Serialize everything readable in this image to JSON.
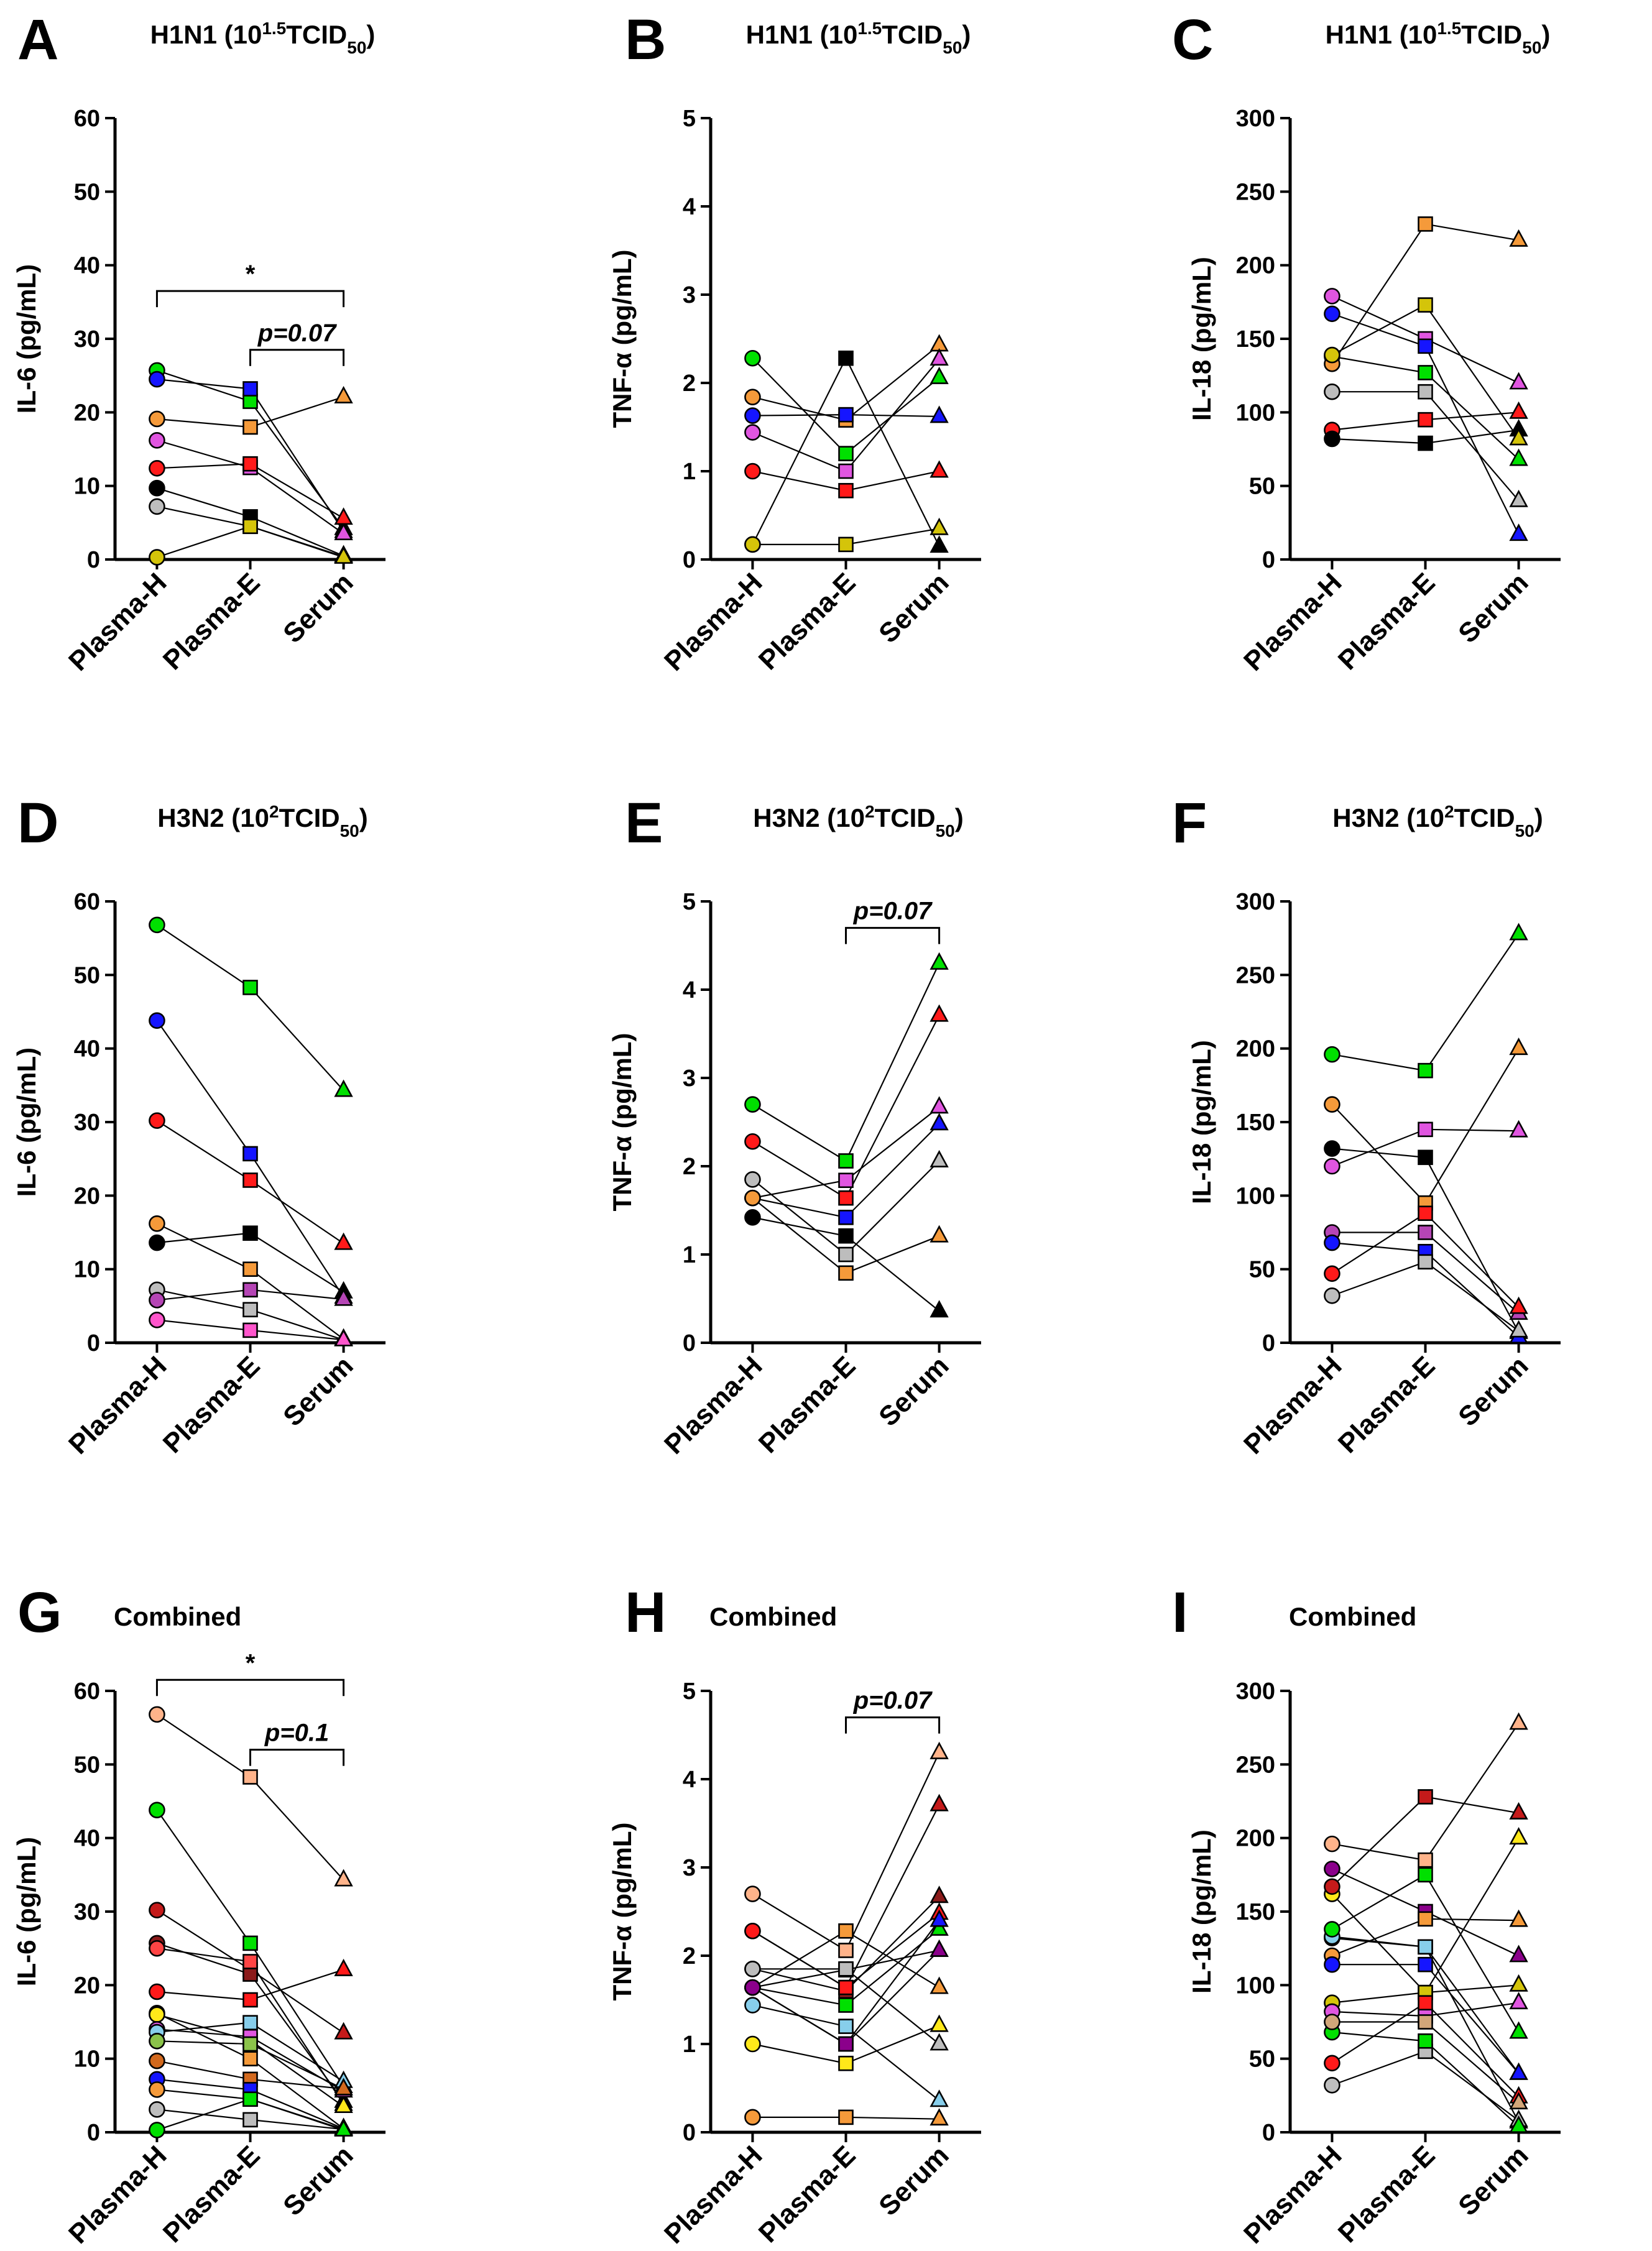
{
  "chart_data": [
    {
      "id": "A",
      "letter": "A",
      "type": "line",
      "title": {
        "parts": [
          {
            "t": "H1N1 (10"
          },
          {
            "t": "1.5",
            "sup": true
          },
          {
            "t": "TCID"
          },
          {
            "t": "50",
            "sub": true
          },
          {
            "t": ")"
          }
        ]
      },
      "ylabel": "IL-6 (pg/mL)",
      "ylim": [
        0,
        60
      ],
      "yticks": [
        0,
        10,
        20,
        30,
        40,
        50,
        60
      ],
      "categories": [
        "Plasma-H",
        "Plasma-E",
        "Serum"
      ],
      "series": [
        {
          "color": "#00e000",
          "values": [
            25.7,
            21.5,
            4.2
          ]
        },
        {
          "color": "#1515ff",
          "values": [
            24.5,
            23.2,
            3.8
          ]
        },
        {
          "color": "#f59a3a",
          "values": [
            19.1,
            18.0,
            22.1
          ]
        },
        {
          "color": "#e055e0",
          "values": [
            16.2,
            12.5,
            3.5
          ]
        },
        {
          "color": "#ff1a1a",
          "values": [
            12.4,
            13.0,
            5.6
          ]
        },
        {
          "color": "#000000",
          "values": [
            9.7,
            5.8,
            0.5
          ]
        },
        {
          "color": "#bdbdbd",
          "values": [
            7.2,
            4.5,
            0.4
          ]
        },
        {
          "color": "#d4c40a",
          "values": [
            0.3,
            4.5,
            0.3
          ]
        }
      ],
      "annotations": [
        {
          "text": "*",
          "from": 0,
          "to": 2,
          "y": 36.5,
          "italic": false
        },
        {
          "text": "p=0.07",
          "from": 1,
          "to": 2,
          "y": 28.5,
          "italic": true
        }
      ]
    },
    {
      "id": "B",
      "letter": "B",
      "type": "line",
      "title": {
        "parts": [
          {
            "t": "H1N1 (10"
          },
          {
            "t": "1.5",
            "sup": true
          },
          {
            "t": "TCID"
          },
          {
            "t": "50",
            "sub": true
          },
          {
            "t": ")"
          }
        ]
      },
      "ylabel": "TNF-α  (pg/mL)",
      "ylim": [
        0,
        5
      ],
      "yticks": [
        0,
        1,
        2,
        3,
        4,
        5
      ],
      "categories": [
        "Plasma-H",
        "Plasma-E",
        "Serum"
      ],
      "series": [
        {
          "color": "#00e000",
          "values": [
            2.28,
            1.2,
            2.06
          ]
        },
        {
          "color": "#f59a3a",
          "values": [
            1.84,
            1.58,
            2.43
          ]
        },
        {
          "color": "#1515ff",
          "values": [
            1.63,
            1.64,
            1.62
          ]
        },
        {
          "color": "#e055e0",
          "values": [
            1.44,
            1.0,
            2.27
          ]
        },
        {
          "color": "#ff1a1a",
          "values": [
            1.0,
            0.78,
            1.0
          ]
        },
        {
          "color": "#000000",
          "values": [
            0.17,
            2.28,
            0.15
          ]
        },
        {
          "color": "#d4c40a",
          "values": [
            0.17,
            0.17,
            0.35
          ]
        }
      ],
      "annotations": []
    },
    {
      "id": "C",
      "letter": "C",
      "type": "line",
      "title": {
        "parts": [
          {
            "t": "H1N1 (10"
          },
          {
            "t": "1.5",
            "sup": true
          },
          {
            "t": "TCID"
          },
          {
            "t": "50",
            "sub": true
          },
          {
            "t": ")"
          }
        ]
      },
      "ylabel": "IL-18 (pg/mL)",
      "ylim": [
        0,
        300
      ],
      "yticks": [
        0,
        50,
        100,
        150,
        200,
        250,
        300
      ],
      "categories": [
        "Plasma-H",
        "Plasma-E",
        "Serum"
      ],
      "series": [
        {
          "color": "#e055e0",
          "values": [
            179,
            150,
            120
          ]
        },
        {
          "color": "#1515ff",
          "values": [
            167,
            145,
            17
          ]
        },
        {
          "color": "#00e000",
          "values": [
            138,
            127,
            68
          ]
        },
        {
          "color": "#f59a3a",
          "values": [
            133,
            228,
            217
          ]
        },
        {
          "color": "#bdbdbd",
          "values": [
            114,
            114,
            40
          ]
        },
        {
          "color": "#ff1a1a",
          "values": [
            88,
            95,
            100
          ]
        },
        {
          "color": "#000000",
          "values": [
            82,
            79,
            88
          ]
        },
        {
          "color": "#d4c40a",
          "values": [
            139,
            173,
            82
          ]
        }
      ],
      "annotations": []
    },
    {
      "id": "D",
      "letter": "D",
      "type": "line",
      "title": {
        "parts": [
          {
            "t": "H3N2 (10"
          },
          {
            "t": "2",
            "sup": true
          },
          {
            "t": "TCID"
          },
          {
            "t": "50",
            "sub": true
          },
          {
            "t": ")"
          }
        ]
      },
      "ylabel": "IL-6 (pg/mL)",
      "ylim": [
        0,
        60
      ],
      "yticks": [
        0,
        10,
        20,
        30,
        40,
        50,
        60
      ],
      "categories": [
        "Plasma-H",
        "Plasma-E",
        "Serum"
      ],
      "series": [
        {
          "color": "#00e000",
          "values": [
            56.8,
            48.3,
            34.3
          ]
        },
        {
          "color": "#1515ff",
          "values": [
            43.8,
            25.7,
            6.2
          ]
        },
        {
          "color": "#ff1a1a",
          "values": [
            30.2,
            22.1,
            13.5
          ]
        },
        {
          "color": "#f59a3a",
          "values": [
            16.2,
            10.0,
            0.5
          ]
        },
        {
          "color": "#000000",
          "values": [
            13.6,
            14.9,
            6.9
          ]
        },
        {
          "color": "#bdbdbd",
          "values": [
            7.2,
            4.5,
            0.4
          ]
        },
        {
          "color": "#b545b5",
          "values": [
            5.8,
            7.2,
            5.9
          ]
        },
        {
          "color": "#ff55cc",
          "values": [
            3.1,
            1.7,
            0.4
          ]
        }
      ],
      "annotations": []
    },
    {
      "id": "E",
      "letter": "E",
      "type": "line",
      "title": {
        "parts": [
          {
            "t": "H3N2 (10"
          },
          {
            "t": "2",
            "sup": true
          },
          {
            "t": "TCID"
          },
          {
            "t": "50",
            "sub": true
          },
          {
            "t": ")"
          }
        ]
      },
      "ylabel": "TNF-α  (pg/mL)",
      "ylim": [
        0,
        5
      ],
      "yticks": [
        0,
        1,
        2,
        3,
        4,
        5
      ],
      "categories": [
        "Plasma-H",
        "Plasma-E",
        "Serum"
      ],
      "series": [
        {
          "color": "#00e000",
          "values": [
            2.7,
            2.06,
            4.3
          ]
        },
        {
          "color": "#ff1a1a",
          "values": [
            2.28,
            1.64,
            3.71
          ]
        },
        {
          "color": "#bdbdbd",
          "values": [
            1.85,
            1.0,
            2.06
          ]
        },
        {
          "color": "#e055e0",
          "values": [
            1.64,
            1.84,
            2.67
          ]
        },
        {
          "color": "#000000",
          "values": [
            1.42,
            1.21,
            0.36
          ]
        },
        {
          "color": "#1515ff",
          "values": [
            1.64,
            1.42,
            2.48
          ]
        },
        {
          "color": "#f59a3a",
          "values": [
            1.64,
            0.79,
            1.21
          ]
        }
      ],
      "annotations": [
        {
          "text": "p=0.07",
          "from": 1,
          "to": 2,
          "y": 4.7,
          "italic": true
        }
      ]
    },
    {
      "id": "F",
      "letter": "F",
      "type": "line",
      "title": {
        "parts": [
          {
            "t": "H3N2 (10"
          },
          {
            "t": "2",
            "sup": true
          },
          {
            "t": "TCID"
          },
          {
            "t": "50",
            "sub": true
          },
          {
            "t": ")"
          }
        ]
      },
      "ylabel": "IL-18 (pg/mL)",
      "ylim": [
        0,
        300
      ],
      "yticks": [
        0,
        50,
        100,
        150,
        200,
        250,
        300
      ],
      "categories": [
        "Plasma-H",
        "Plasma-E",
        "Serum"
      ],
      "series": [
        {
          "color": "#00e000",
          "values": [
            196,
            185,
            278
          ]
        },
        {
          "color": "#f59a3a",
          "values": [
            162,
            95,
            200
          ]
        },
        {
          "color": "#000000",
          "values": [
            132,
            126,
            7
          ]
        },
        {
          "color": "#e055e0",
          "values": [
            120,
            145,
            144
          ]
        },
        {
          "color": "#b545b5",
          "values": [
            75,
            75,
            20
          ]
        },
        {
          "color": "#1515ff",
          "values": [
            68,
            62,
            4
          ]
        },
        {
          "color": "#ff1a1a",
          "values": [
            47,
            88,
            24
          ]
        },
        {
          "color": "#bdbdbd",
          "values": [
            32,
            55,
            8
          ]
        }
      ],
      "annotations": []
    },
    {
      "id": "G",
      "letter": "G",
      "type": "line",
      "title": {
        "parts": [
          {
            "t": "Combined"
          }
        ]
      },
      "ylabel": "IL-6 (pg/mL)",
      "ylim": [
        0,
        60
      ],
      "yticks": [
        0,
        10,
        20,
        30,
        40,
        50,
        60
      ],
      "categories": [
        "Plasma-H",
        "Plasma-E",
        "Serum"
      ],
      "series": [
        {
          "color": "#ffb38a",
          "values": [
            56.8,
            48.3,
            34.3
          ]
        },
        {
          "color": "#00e000",
          "values": [
            43.8,
            25.7,
            6.2
          ]
        },
        {
          "color": "#c41a1a",
          "values": [
            30.2,
            22.1,
            13.5
          ]
        },
        {
          "color": "#8b1a1a",
          "values": [
            25.7,
            21.5,
            4.2
          ]
        },
        {
          "color": "#ff4444",
          "values": [
            25.0,
            23.2,
            3.8
          ]
        },
        {
          "color": "#ff1a1a",
          "values": [
            19.1,
            18.0,
            22.1
          ]
        },
        {
          "color": "#f59a3a",
          "values": [
            16.2,
            10.0,
            0.5
          ]
        },
        {
          "color": "#ffe81a",
          "values": [
            16.0,
            12.5,
            3.5
          ]
        },
        {
          "color": "#e055e0",
          "values": [
            14.0,
            13.0,
            5.6
          ]
        },
        {
          "color": "#87ceeb",
          "values": [
            13.6,
            14.9,
            6.9
          ]
        },
        {
          "color": "#8bc34a",
          "values": [
            12.4,
            12.0,
            5.9
          ]
        },
        {
          "color": "#d2691e",
          "values": [
            9.7,
            7.2,
            5.9
          ]
        },
        {
          "color": "#1515ff",
          "values": [
            7.2,
            5.8,
            0.5
          ]
        },
        {
          "color": "#f59a3a",
          "values": [
            5.8,
            4.5,
            0.4
          ]
        },
        {
          "color": "#bdbdbd",
          "values": [
            3.1,
            1.7,
            0.4
          ]
        },
        {
          "color": "#00e000",
          "values": [
            0.3,
            4.5,
            0.3
          ]
        }
      ],
      "annotations": [
        {
          "text": "*",
          "from": 0,
          "to": 2,
          "y": 61.5,
          "italic": false
        },
        {
          "text": "p=0.1",
          "from": 1,
          "to": 2,
          "y": 52.0,
          "italic": true
        }
      ]
    },
    {
      "id": "H",
      "letter": "H",
      "type": "line",
      "title": {
        "parts": [
          {
            "t": "Combined"
          }
        ]
      },
      "ylabel": "TNF-α  (pg/mL)",
      "ylim": [
        0,
        5
      ],
      "yticks": [
        0,
        1,
        2,
        3,
        4,
        5
      ],
      "categories": [
        "Plasma-H",
        "Plasma-E",
        "Serum"
      ],
      "series": [
        {
          "color": "#ffb38a",
          "values": [
            2.7,
            2.06,
            4.3
          ]
        },
        {
          "color": "#c41a1a",
          "values": [
            2.28,
            1.64,
            3.71
          ]
        },
        {
          "color": "#8b1a1a",
          "values": [
            1.85,
            1.6,
            2.67
          ]
        },
        {
          "color": "#ff1a1a",
          "values": [
            2.28,
            1.64,
            2.48
          ]
        },
        {
          "color": "#d2691e",
          "values": [
            1.64,
            1.84,
            2.06
          ]
        },
        {
          "color": "#f59a3a",
          "values": [
            1.64,
            2.28,
            1.64
          ]
        },
        {
          "color": "#87ceeb",
          "values": [
            1.44,
            1.2,
            0.36
          ]
        },
        {
          "color": "#ffe81a",
          "values": [
            1.0,
            0.78,
            1.21
          ]
        },
        {
          "color": "#f59a3a",
          "values": [
            0.17,
            0.17,
            0.15
          ]
        },
        {
          "color": "#00e000",
          "values": [
            1.64,
            1.44,
            2.3
          ]
        },
        {
          "color": "#1515ff",
          "values": [
            1.64,
            1.0,
            2.4
          ]
        },
        {
          "color": "#bdbdbd",
          "values": [
            1.85,
            1.85,
            1.0
          ]
        },
        {
          "color": "#8b008b",
          "values": [
            1.64,
            1.0,
            2.06
          ]
        }
      ],
      "annotations": [
        {
          "text": "p=0.07",
          "from": 1,
          "to": 2,
          "y": 4.7,
          "italic": true
        }
      ]
    },
    {
      "id": "I",
      "letter": "I",
      "type": "line",
      "title": {
        "parts": [
          {
            "t": "Combined"
          }
        ]
      },
      "ylabel": "IL-18 (pg/mL)",
      "ylim": [
        0,
        300
      ],
      "yticks": [
        0,
        50,
        100,
        150,
        200,
        250,
        300
      ],
      "categories": [
        "Plasma-H",
        "Plasma-E",
        "Serum"
      ],
      "series": [
        {
          "color": "#ffb38a",
          "values": [
            196,
            185,
            278
          ]
        },
        {
          "color": "#ffe81a",
          "values": [
            162,
            95,
            200
          ]
        },
        {
          "color": "#8b008b",
          "values": [
            179,
            150,
            120
          ]
        },
        {
          "color": "#c41a1a",
          "values": [
            167,
            228,
            217
          ]
        },
        {
          "color": "#8b1a1a",
          "values": [
            132,
            126,
            7
          ]
        },
        {
          "color": "#87ceeb",
          "values": [
            133,
            126,
            40
          ]
        },
        {
          "color": "#00e000",
          "values": [
            138,
            175,
            68
          ]
        },
        {
          "color": "#f59a3a",
          "values": [
            120,
            145,
            144
          ]
        },
        {
          "color": "#1515ff",
          "values": [
            114,
            114,
            40
          ]
        },
        {
          "color": "#d4c40a",
          "values": [
            88,
            95,
            100
          ]
        },
        {
          "color": "#e055e0",
          "values": [
            82,
            79,
            88
          ]
        },
        {
          "color": "#ff1a1a",
          "values": [
            47,
            88,
            24
          ]
        },
        {
          "color": "#bdbdbd",
          "values": [
            32,
            55,
            8
          ]
        },
        {
          "color": "#00e000",
          "values": [
            68,
            62,
            4
          ]
        },
        {
          "color": "#d2a679",
          "values": [
            75,
            75,
            20
          ]
        }
      ],
      "annotations": []
    }
  ]
}
